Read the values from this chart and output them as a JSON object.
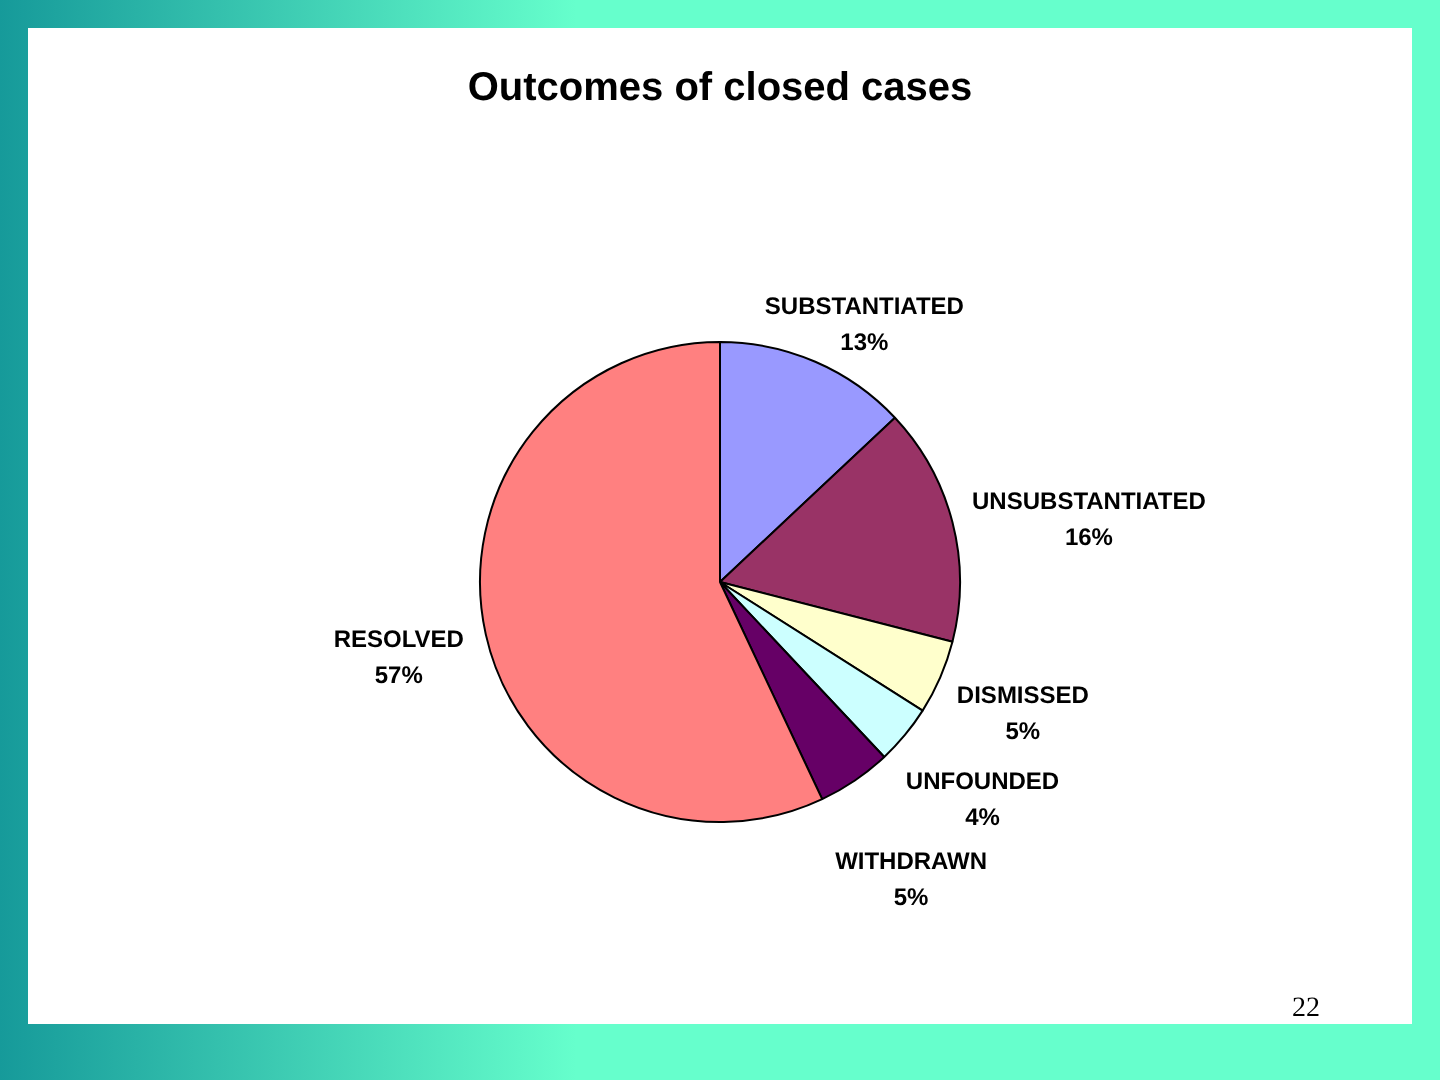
{
  "chart_data": {
    "type": "pie",
    "title": "Outcomes of closed cases",
    "categories": [
      "SUBSTANTIATED",
      "UNSUBSTANTIATED",
      "DISMISSED",
      "UNFOUNDED",
      "WITHDRAWN",
      "RESOLVED"
    ],
    "values": [
      13,
      16,
      5,
      4,
      5,
      57
    ],
    "colors": [
      "#9999ff",
      "#993366",
      "#ffffcc",
      "#ccffff",
      "#660066",
      "#ff8080"
    ],
    "value_labels": [
      "13%",
      "16%",
      "5%",
      "4%",
      "5%",
      "57%"
    ],
    "annotations": [
      "22"
    ]
  }
}
